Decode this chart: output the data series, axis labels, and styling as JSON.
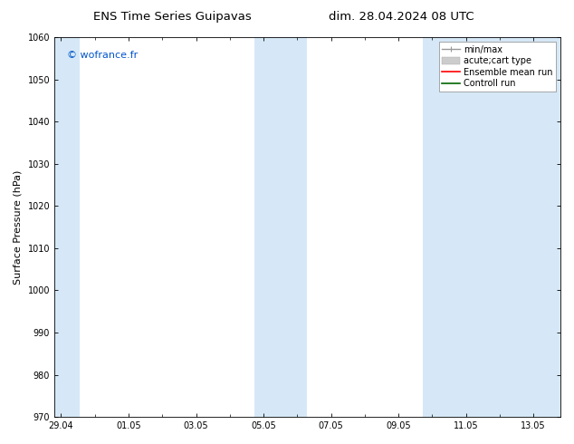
{
  "title_left": "ENS Time Series Guipavas",
  "title_right": "dim. 28.04.2024 08 UTC",
  "ylabel": "Surface Pressure (hPa)",
  "ylim": [
    970,
    1060
  ],
  "yticks": [
    970,
    980,
    990,
    1000,
    1010,
    1020,
    1030,
    1040,
    1050,
    1060
  ],
  "xtick_labels": [
    "29.04",
    "01.05",
    "03.05",
    "05.05",
    "07.05",
    "09.05",
    "11.05",
    "13.05"
  ],
  "xtick_positions": [
    0,
    2,
    4,
    6,
    8,
    10,
    12,
    14
  ],
  "xlim": [
    -0.2,
    14.8
  ],
  "watermark": "© wofrance.fr",
  "watermark_color": "#0055cc",
  "background_color": "#ffffff",
  "plot_bg_color": "#ffffff",
  "band_color": "#d6e8f7",
  "band1_x0": -0.2,
  "band1_x1": 0.55,
  "band2_x0": 5.72,
  "band2_x1": 7.28,
  "band3_x0": 10.72,
  "band3_x1": 14.8,
  "legend_labels": [
    "min/max",
    "acute;cart type",
    "Ensemble mean run",
    "Controll run"
  ],
  "legend_colors": [
    "#999999",
    "#cccccc",
    "#ff0000",
    "#006600"
  ],
  "legend_lw": [
    1.0,
    5.0,
    1.2,
    1.2
  ],
  "title_fontsize": 9.5,
  "tick_fontsize": 7,
  "ylabel_fontsize": 8,
  "watermark_fontsize": 8,
  "legend_fontsize": 7
}
